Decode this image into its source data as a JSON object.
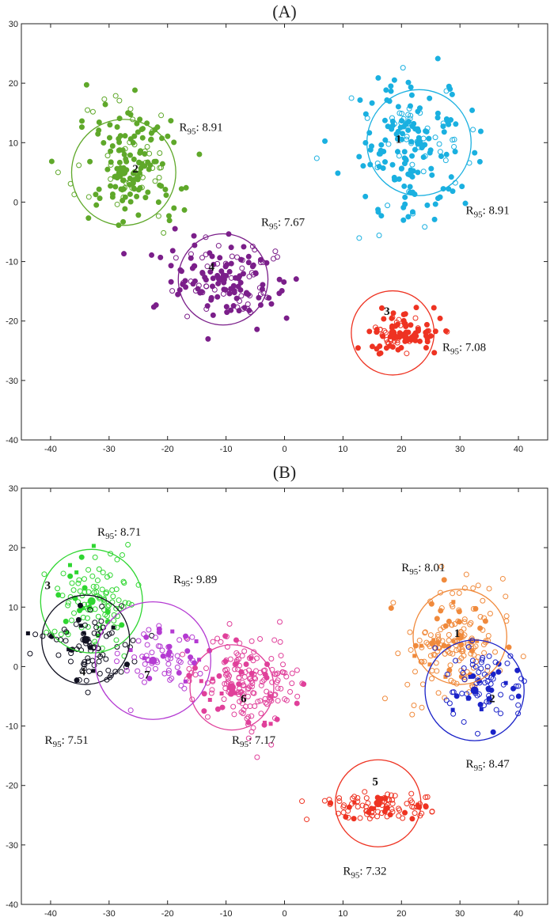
{
  "chart_data": [
    {
      "type": "scatter",
      "title": "(A)",
      "xlim": [
        -45,
        45
      ],
      "ylim": [
        -40,
        30
      ],
      "xticks": [
        -40,
        -30,
        -20,
        -10,
        0,
        10,
        20,
        30,
        40
      ],
      "yticks": [
        -40,
        -30,
        -20,
        -10,
        0,
        10,
        20,
        30
      ],
      "xlabel": "",
      "ylabel": "",
      "clusters": [
        {
          "id": "1",
          "color": "#1ab0e0",
          "center": [
            22,
            10
          ],
          "r95": 8.91,
          "r95_label": "8.91",
          "spread": [
            6.5,
            7.5
          ],
          "n": 190,
          "circle": [
            23,
            10
          ],
          "circle_r": 8.91,
          "id_pos": [
            19,
            10
          ],
          "r95_pos": [
            31,
            -2
          ]
        },
        {
          "id": "2",
          "color": "#5fa82a",
          "center": [
            -26,
            6
          ],
          "r95": 8.91,
          "r95_label": "8.91",
          "spread": [
            5.5,
            7
          ],
          "n": 170,
          "circle": [
            -27.5,
            5
          ],
          "circle_r": 8.91,
          "id_pos": [
            -26,
            5
          ],
          "r95_pos": [
            -18,
            12
          ]
        },
        {
          "id": "3",
          "color": "#ee3322",
          "center": [
            20,
            -22
          ],
          "r95": 7.08,
          "r95_label": "7.08",
          "spread": [
            4,
            2.2
          ],
          "n": 95,
          "circle": [
            18.5,
            -22
          ],
          "circle_r": 7.08,
          "id_pos": [
            17,
            -19
          ],
          "r95_pos": [
            27,
            -25
          ]
        },
        {
          "id": "4",
          "color": "#7b1f8a",
          "center": [
            -11,
            -13
          ],
          "r95": 7.67,
          "r95_label": "7.67",
          "spread": [
            7,
            5
          ],
          "n": 160,
          "circle": [
            -10.5,
            -13
          ],
          "circle_r": 7.67,
          "id_pos": [
            -13,
            -11.5
          ],
          "r95_pos": [
            -4,
            -4
          ]
        }
      ]
    },
    {
      "type": "scatter",
      "title": "(B)",
      "xlim": [
        -45,
        45
      ],
      "ylim": [
        -40,
        30
      ],
      "xticks": [
        -40,
        -30,
        -20,
        -10,
        0,
        10,
        20,
        30,
        40
      ],
      "yticks": [
        -40,
        -30,
        -20,
        -10,
        0,
        10,
        20,
        30
      ],
      "xlabel": "",
      "ylabel": "",
      "clusters": [
        {
          "id": "1",
          "color": "#f08a3c",
          "center": [
            29,
            4
          ],
          "r95": 8.01,
          "r95_label": "8.01",
          "spread": [
            6,
            6
          ],
          "n": 170,
          "circle": [
            30,
            5
          ],
          "circle_r": 8.01,
          "id_pos": [
            29,
            5
          ],
          "r95_pos": [
            20,
            16
          ]
        },
        {
          "id": "2",
          "color": "#1a22c8",
          "center": [
            33,
            -3
          ],
          "r95": 8.47,
          "r95_label": "8.47",
          "spread": [
            5,
            4
          ],
          "n": 80,
          "circle": [
            32.5,
            -4
          ],
          "circle_r": 8.47,
          "id_pos": [
            35,
            -6
          ],
          "r95_pos": [
            31,
            -17
          ]
        },
        {
          "id": "3",
          "color": "#2fd631",
          "center": [
            -32,
            11
          ],
          "r95": 8.71,
          "r95_label": "8.71",
          "spread": [
            4.5,
            5
          ],
          "n": 110,
          "circle": [
            -33,
            11
          ],
          "circle_r": 8.71,
          "id_pos": [
            -41,
            13
          ],
          "r95_pos": [
            -32,
            22
          ]
        },
        {
          "id": "4",
          "color": "#101020",
          "center": [
            -33,
            3
          ],
          "r95": 7.51,
          "r95_label": "7.51",
          "spread": [
            5,
            4
          ],
          "n": 90,
          "circle": [
            -34,
            4.5
          ],
          "circle_r": 7.51,
          "id_pos": [
            -35,
            -1.5
          ],
          "r95_pos": [
            -41,
            -13
          ]
        },
        {
          "id": "5",
          "color": "#ee3322",
          "center": [
            16,
            -23.5
          ],
          "r95": 7.32,
          "r95_label": "7.32",
          "spread": [
            6.5,
            1.6
          ],
          "n": 95,
          "circle": [
            16,
            -23
          ],
          "circle_r": 7.32,
          "id_pos": [
            15,
            -20
          ],
          "r95_pos": [
            10,
            -35
          ]
        },
        {
          "id": "6",
          "color": "#e0409a",
          "center": [
            -7,
            -3
          ],
          "r95": 7.17,
          "r95_label": "7.17",
          "spread": [
            6,
            5
          ],
          "n": 200,
          "circle": [
            -9,
            -3.5
          ],
          "circle_r": 7.17,
          "id_pos": [
            -7.5,
            -6
          ],
          "r95_pos": [
            -9,
            -13
          ]
        },
        {
          "id": "7",
          "color": "#b43ad2",
          "center": [
            -22,
            1
          ],
          "r95": 9.89,
          "r95_label": "9.89",
          "spread": [
            5,
            4
          ],
          "n": 70,
          "circle": [
            -22.5,
            1
          ],
          "circle_r": 9.89,
          "id_pos": [
            -24,
            -2
          ],
          "r95_pos": [
            -19,
            14
          ]
        }
      ]
    }
  ],
  "r95_prefix": "R",
  "r95_sub": "95",
  "r95_suffix": ": "
}
